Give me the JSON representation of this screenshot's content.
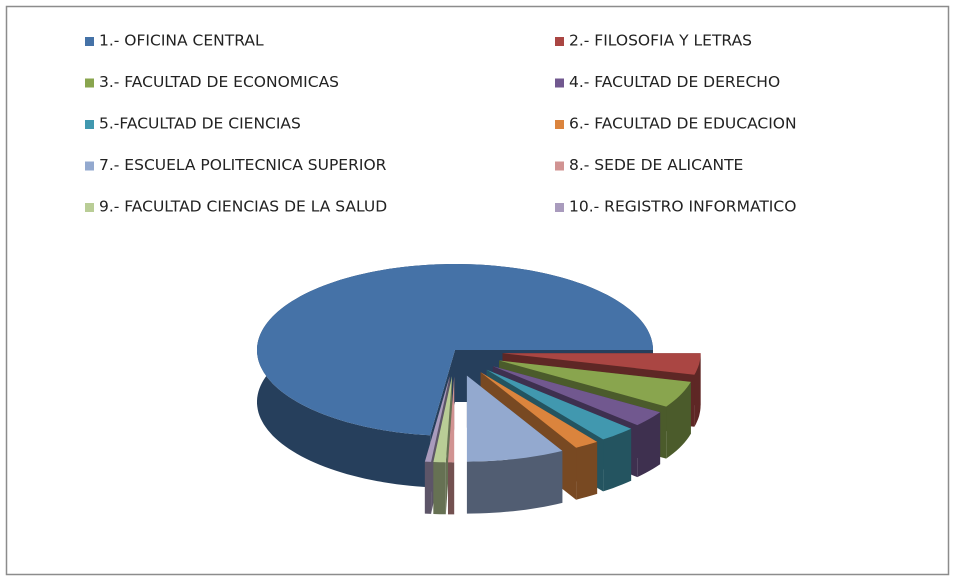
{
  "chart_data": {
    "type": "pie",
    "categories": [
      "1.- OFICINA CENTRAL",
      "2.- FILOSOFIA Y LETRAS",
      "3.- FACULTAD DE ECONOMICAS",
      "4.- FACULTAD DE DERECHO",
      "5.-FACULTAD DE CIENCIAS",
      "6.- FACULTAD DE EDUCACION",
      "7.- ESCUELA POLITECNICA SUPERIOR",
      "8.- SEDE DE ALICANTE",
      "9.- FACULTAD CIENCIAS DE LA SALUD",
      "10.- REGISTRO INFORMATICO"
    ],
    "values": [
      73,
      4,
      5,
      3,
      3,
      2,
      8,
      0.5,
      1,
      0.5
    ],
    "colors": [
      "#4572a7",
      "#aa4643",
      "#89a54e",
      "#71588f",
      "#4198af",
      "#db843d",
      "#93a9cf",
      "#d19392",
      "#b9cd96",
      "#a99bbd"
    ],
    "legend": "top"
  }
}
